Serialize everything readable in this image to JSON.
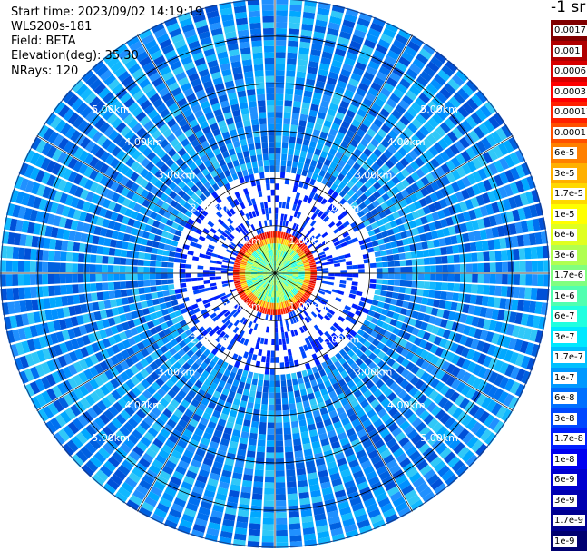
{
  "header": {
    "start_time": "Start time: 2023/09/02 14:19:19",
    "instrument": "WLS200s-181",
    "field": "Field: BETA",
    "elevation": "Elevation(deg): 35.30",
    "nrays": "NRays: 120"
  },
  "colorbar": {
    "title": "-1 sr",
    "labels": [
      "0.0017",
      "0.001",
      "0.0006",
      "0.0003",
      "0.00017",
      "0.0001",
      "6e-5",
      "3e-5",
      "1.7e-5",
      "1e-5",
      "6e-6",
      "3e-6",
      "1.7e-6",
      "1e-6",
      "6e-7",
      "3e-7",
      "1.7e-7",
      "1e-7",
      "6e-8",
      "3e-8",
      "1.7e-8",
      "1e-8",
      "6e-9",
      "3e-9",
      "1.7e-9",
      "1e-9"
    ],
    "colors": [
      "#800000",
      "#b00000",
      "#d80000",
      "#ff0000",
      "#ff2000",
      "#ff5000",
      "#ff8000",
      "#ffb000",
      "#ffd800",
      "#ffff00",
      "#e0ff20",
      "#b0ff50",
      "#80ff80",
      "#50ffb0",
      "#20ffe0",
      "#00e8ff",
      "#00c0ff",
      "#0098ff",
      "#0070ff",
      "#0048ff",
      "#0020ff",
      "#0000f0",
      "#0000d0",
      "#0000b0",
      "#000090",
      "#000070"
    ]
  },
  "chart_data": {
    "type": "heatmap",
    "projection": "polar (PPI scan)",
    "field": "BETA",
    "rays": 120,
    "range_ring_labels": [
      "1.00km",
      "2.00km",
      "3.00km",
      "4.00km",
      "5.00km"
    ],
    "range_rings_km": [
      1,
      2,
      3,
      4,
      5
    ],
    "max_range_km": 5.8,
    "color_scale": "log",
    "value_range": [
      1e-09,
      0.0017
    ],
    "features": {
      "near_field_ring_km": 0.8,
      "near_field_value": 0.0003,
      "background_value": 1e-07,
      "inner_scatter_value": 1e-08
    },
    "title": "",
    "xlabel": "",
    "ylabel": ""
  }
}
